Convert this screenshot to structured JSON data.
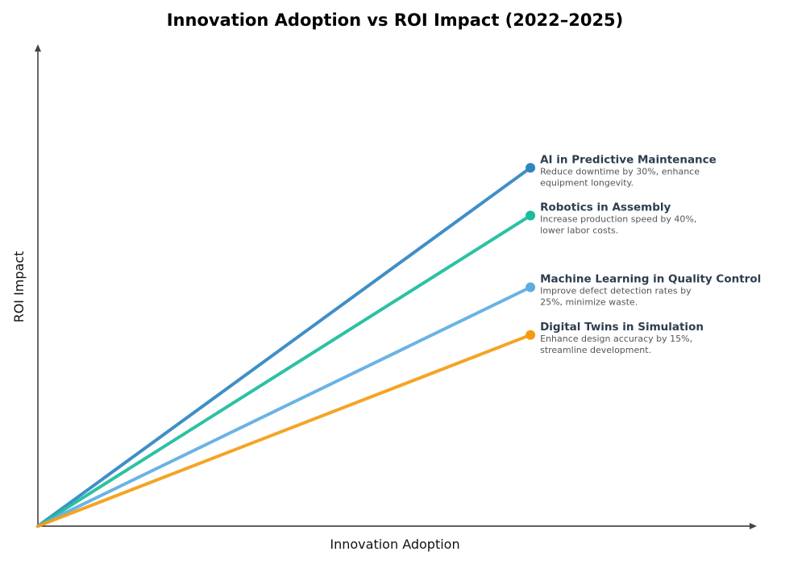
{
  "chart_data": {
    "type": "line",
    "title": "Innovation Adoption vs ROI Impact (2022–2025)",
    "xlabel": "Innovation Adoption",
    "ylabel": "ROI Impact",
    "xlim": [
      0,
      10
    ],
    "ylim": [
      0,
      10
    ],
    "grid": false,
    "ticks_shown": false,
    "series": [
      {
        "name": "AI in Predictive Maintenance",
        "description": [
          "Reduce downtime by 30%, enhance",
          "equipment longevity."
        ],
        "color": "#2e86c1",
        "x": [
          0,
          7
        ],
        "y": [
          0,
          7.5
        ]
      },
      {
        "name": "Robotics in Assembly",
        "description": [
          "Increase production speed by 40%,",
          "lower labor costs."
        ],
        "color": "#1abc9c",
        "x": [
          0,
          7
        ],
        "y": [
          0,
          6.5
        ]
      },
      {
        "name": "Machine Learning in Quality Control",
        "description": [
          "Improve defect detection rates by",
          "25%, minimize waste."
        ],
        "color": "#5dade2",
        "x": [
          0,
          7
        ],
        "y": [
          0,
          5
        ]
      },
      {
        "name": "Digital Twins in Simulation",
        "description": [
          "Enhance design accuracy by 15%,",
          "streamline development."
        ],
        "color": "#f39c12",
        "x": [
          0,
          7
        ],
        "y": [
          0,
          4
        ]
      }
    ]
  }
}
